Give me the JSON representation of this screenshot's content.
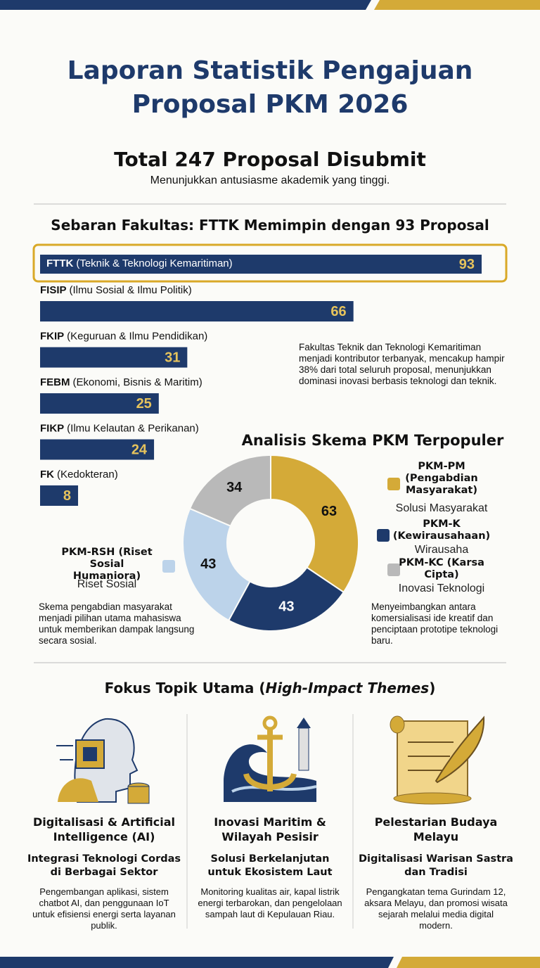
{
  "header": {
    "title_line1": "Laporan Statistik Pengajuan",
    "title_line2": "Proposal PKM 2026",
    "headline": "Total 247 Proposal Disubmit",
    "subheadline": "Menunjukkan antusiasme akademik yang tinggi."
  },
  "chart_data": [
    {
      "type": "hbar",
      "title": "Sebaran Fakultas: FTTK Memimpin dengan 93 Proposal",
      "categories": [
        "FTTK",
        "FISIP",
        "FKIP",
        "FEBM",
        "FIKP",
        "FK"
      ],
      "category_notes": [
        "(Teknik & Teknologi Kemaritiman)",
        "(Ilmu Sosial & Ilmu Politik)",
        "(Keguruan & Ilmu Pendidikan)",
        "(Ekonomi, Bisnis & Maritim)",
        "(Ilmu Kelautan & Perikanan)",
        "(Kedokteran)"
      ],
      "values": [
        93,
        66,
        31,
        25,
        24,
        8
      ],
      "color": "#1e3a6b",
      "label_color": "#e6c35c",
      "highlight": 0,
      "highlight_color": "#d9a928",
      "annotation": "Fakultas Teknik dan Teknologi Kemaritiman menjadi kontributor terbanyak, mencakup hampir 38% dari total seluruh proposal, menunjukkan dominasi inovasi berbasis teknologi dan teknik."
    },
    {
      "type": "donut",
      "title": "Analisis Skema PKM Terpopuler",
      "categories": [
        "PKM-PM (Pengabdian Masyarakat)",
        "PKM-K (Kewirausahaan)",
        "PKM-RSH (Riset Sosial Humaniora)",
        "PKM-KC (Karsa Cipta)"
      ],
      "sublabels": [
        "Solusi Masyarakat",
        "Wirausaha",
        "Riset Sosial",
        "Inovasi Teknologi"
      ],
      "values": [
        63,
        43,
        43,
        34
      ],
      "colors": [
        "#d4aa38",
        "#1e3a6b",
        "#bcd3ea",
        "#b9b9b9"
      ],
      "annotation_left": "Skema pengabdian masyarakat menjadi pilihan utama mahasiswa untuk memberikan dampak langsung secara sosial.",
      "annotation_right": "Menyeimbangkan antara komersialisasi ide kreatif dan penciptaan prototipe teknologi baru."
    }
  ],
  "themes": {
    "title_prefix": "Fokus Topik Utama (",
    "title_italic": "High-Impact Themes",
    "title_suffix": ")",
    "items": [
      {
        "title": "Digitalisasi & Artificial Intelligence (AI)",
        "subtitle": "Integrasi Teknologi Cordas di Berbagai Sektor",
        "description": "Pengembangan aplikasi, sistem chatbot AI, dan penggunaan IoT untuk efisiensi energi serta layanan publik."
      },
      {
        "title": "Inovasi Maritim & Wilayah Pesisir",
        "subtitle": "Solusi Berkelanjutan untuk Ekosistem Laut",
        "description": "Monitoring kualitas air, kapal listrik energi terbarokan, dan pengelolaan sampah laut di Kepulauan Riau."
      },
      {
        "title": "Pelestarian Budaya Melayu",
        "subtitle": "Digitalisasi Warisan Sastra dan Tradisi",
        "description": "Pengangkatan tema Gurindam 12, aksara Melayu, dan promosi wisata sejarah melalui media digital modern."
      }
    ]
  }
}
